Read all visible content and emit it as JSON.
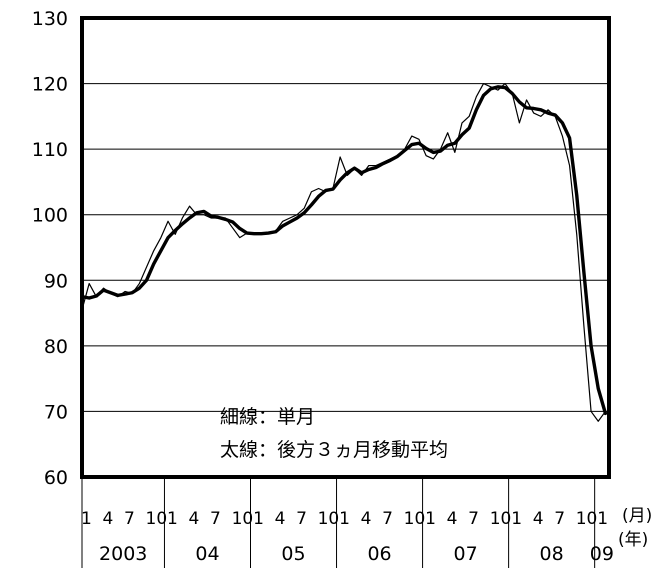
{
  "chart_data": {
    "type": "line",
    "ylim": [
      60,
      130
    ],
    "yticks": [
      60,
      70,
      80,
      90,
      100,
      110,
      120,
      130
    ],
    "grid": true,
    "x_unit_month": "(月)",
    "x_unit_year": "(年)",
    "years": [
      "2003",
      "04",
      "05",
      "06",
      "07",
      "08",
      "09"
    ],
    "year_months": [
      12,
      12,
      12,
      12,
      12,
      12,
      2
    ],
    "month_tick_labels": [
      "1",
      "4",
      "7",
      "10"
    ],
    "final_month_label": "1",
    "annotation": [
      "細線：単月",
      "太線：後方３ヵ月移動平均"
    ],
    "series": [
      {
        "name": "単月",
        "values": [
          85.5,
          89.5,
          87.5,
          88.8,
          88,
          87.5,
          88.3,
          88,
          89.5,
          92,
          94.5,
          96.5,
          99,
          97,
          99.5,
          101.3,
          100,
          100,
          99.5,
          99.5,
          99.5,
          98,
          96.5,
          97.2,
          97,
          97,
          97.3,
          97.5,
          99,
          99.5,
          100,
          101,
          103.5,
          104,
          103.5,
          104,
          108.8,
          106,
          107,
          106,
          107.5,
          107.5,
          108,
          108.5,
          109,
          110,
          112,
          111.5,
          109,
          108.5,
          110,
          112.5,
          109.5,
          114,
          115,
          118,
          120,
          119.5,
          119,
          120,
          118.5,
          114,
          117.5,
          115.5,
          115,
          116,
          115,
          112,
          107.5,
          97,
          83,
          70,
          68.5,
          70
        ]
      },
      {
        "name": "後方３ヵ月移動平均",
        "values": [
          87.5,
          87.3,
          87.6,
          88.5,
          88.1,
          87.7,
          87.9,
          88.1,
          88.8,
          90,
          92.5,
          94.5,
          96.5,
          97.6,
          98.6,
          99.5,
          100.3,
          100.5,
          99.8,
          99.6,
          99.3,
          98.9,
          97.9,
          97.2,
          97.1,
          97.1,
          97.2,
          97.4,
          98.3,
          98.9,
          99.5,
          100.3,
          101.5,
          102.8,
          103.7,
          103.9,
          105.3,
          106.4,
          107.1,
          106.4,
          106.9,
          107.2,
          107.8,
          108.3,
          108.9,
          109.8,
          110.7,
          110.9,
          110.1,
          109.5,
          109.7,
          110.6,
          110.9,
          112.2,
          113.2,
          116,
          118.2,
          119.2,
          119.5,
          119.4,
          118.5,
          117.2,
          116.3,
          116.2,
          116,
          115.5,
          115.2,
          114,
          111.7,
          103,
          91.2,
          80,
          73.5,
          69.7
        ]
      }
    ]
  }
}
